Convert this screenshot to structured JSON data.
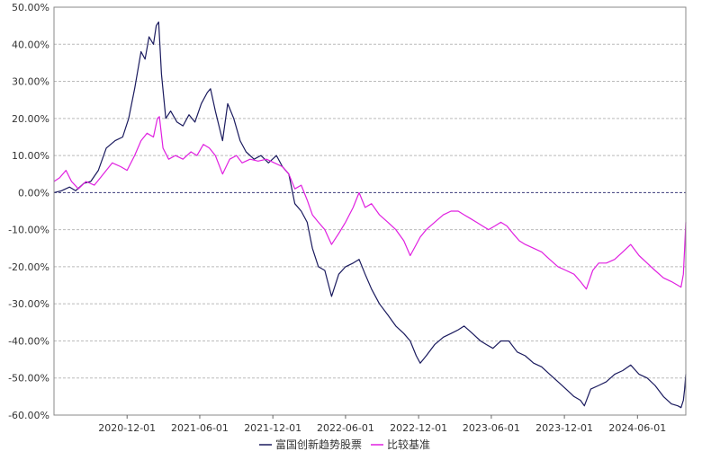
{
  "chart_data": {
    "type": "line",
    "x_axis": {
      "type": "date",
      "range": [
        "2020-06-01",
        "2024-09-30"
      ],
      "tick_labels": [
        "2020-12-01",
        "2021-06-01",
        "2021-12-01",
        "2022-06-01",
        "2022-12-01",
        "2023-06-01",
        "2023-12-01",
        "2024-06-01"
      ]
    },
    "y_axis": {
      "range": [
        -60,
        50
      ],
      "unit": "%",
      "tick_labels": [
        "50.00%",
        "40.00%",
        "30.00%",
        "20.00%",
        "10.00%",
        "0.00%",
        "-10.00%",
        "-20.00%",
        "-30.00%",
        "-40.00%",
        "-50.00%",
        "-60.00%"
      ]
    },
    "grid": true,
    "legend_position": "bottom-center",
    "series": [
      {
        "name": "富国创新趋势股票",
        "color": "#1a1a5e",
        "points": [
          [
            "2020-06-01",
            0.0
          ],
          [
            "2020-06-20",
            0.5
          ],
          [
            "2020-07-10",
            1.5
          ],
          [
            "2020-07-25",
            0.5
          ],
          [
            "2020-08-15",
            2.5
          ],
          [
            "2020-09-01",
            3.0
          ],
          [
            "2020-09-20",
            6.0
          ],
          [
            "2020-10-10",
            12.0
          ],
          [
            "2020-11-01",
            14.0
          ],
          [
            "2020-11-20",
            15.0
          ],
          [
            "2020-12-05",
            20.0
          ],
          [
            "2020-12-20",
            28.0
          ],
          [
            "2021-01-05",
            38.0
          ],
          [
            "2021-01-15",
            36.0
          ],
          [
            "2021-01-25",
            42.0
          ],
          [
            "2021-02-05",
            40.0
          ],
          [
            "2021-02-12",
            45.0
          ],
          [
            "2021-02-18",
            46.0
          ],
          [
            "2021-02-25",
            32.0
          ],
          [
            "2021-03-08",
            20.0
          ],
          [
            "2021-03-20",
            22.0
          ],
          [
            "2021-04-05",
            19.0
          ],
          [
            "2021-04-20",
            18.0
          ],
          [
            "2021-05-05",
            21.0
          ],
          [
            "2021-05-20",
            19.0
          ],
          [
            "2021-06-05",
            24.0
          ],
          [
            "2021-06-20",
            27.0
          ],
          [
            "2021-06-28",
            28.0
          ],
          [
            "2021-07-10",
            22.0
          ],
          [
            "2021-07-28",
            14.0
          ],
          [
            "2021-08-10",
            24.0
          ],
          [
            "2021-08-25",
            20.0
          ],
          [
            "2021-09-10",
            14.0
          ],
          [
            "2021-09-25",
            11.0
          ],
          [
            "2021-10-15",
            9.0
          ],
          [
            "2021-11-01",
            10.0
          ],
          [
            "2021-11-20",
            8.0
          ],
          [
            "2021-12-10",
            10.0
          ],
          [
            "2021-12-25",
            7.0
          ],
          [
            "2022-01-10",
            5.0
          ],
          [
            "2022-01-25",
            -3.0
          ],
          [
            "2022-02-10",
            -5.0
          ],
          [
            "2022-02-25",
            -8.0
          ],
          [
            "2022-03-10",
            -15.0
          ],
          [
            "2022-03-25",
            -20.0
          ],
          [
            "2022-04-10",
            -21.0
          ],
          [
            "2022-04-27",
            -28.0
          ],
          [
            "2022-05-15",
            -22.0
          ],
          [
            "2022-06-01",
            -20.0
          ],
          [
            "2022-06-20",
            -19.0
          ],
          [
            "2022-07-05",
            -18.0
          ],
          [
            "2022-07-20",
            -22.0
          ],
          [
            "2022-08-05",
            -26.0
          ],
          [
            "2022-08-25",
            -30.0
          ],
          [
            "2022-09-15",
            -33.0
          ],
          [
            "2022-10-05",
            -36.0
          ],
          [
            "2022-10-25",
            -38.0
          ],
          [
            "2022-11-10",
            -40.0
          ],
          [
            "2022-11-25",
            -44.0
          ],
          [
            "2022-12-05",
            -46.0
          ],
          [
            "2022-12-20",
            -44.0
          ],
          [
            "2023-01-10",
            -41.0
          ],
          [
            "2023-02-01",
            -39.0
          ],
          [
            "2023-02-20",
            -38.0
          ],
          [
            "2023-03-10",
            -37.0
          ],
          [
            "2023-03-25",
            -36.0
          ],
          [
            "2023-04-15",
            -38.0
          ],
          [
            "2023-05-05",
            -40.0
          ],
          [
            "2023-05-20",
            -41.0
          ],
          [
            "2023-06-05",
            -42.0
          ],
          [
            "2023-06-25",
            -40.0
          ],
          [
            "2023-07-15",
            -40.0
          ],
          [
            "2023-08-05",
            -43.0
          ],
          [
            "2023-08-25",
            -44.0
          ],
          [
            "2023-09-15",
            -46.0
          ],
          [
            "2023-10-05",
            -47.0
          ],
          [
            "2023-10-25",
            -49.0
          ],
          [
            "2023-11-15",
            -51.0
          ],
          [
            "2023-12-05",
            -53.0
          ],
          [
            "2023-12-25",
            -55.0
          ],
          [
            "2024-01-10",
            -56.0
          ],
          [
            "2024-01-20",
            -57.5
          ],
          [
            "2024-02-05",
            -53.0
          ],
          [
            "2024-02-25",
            -52.0
          ],
          [
            "2024-03-15",
            -51.0
          ],
          [
            "2024-04-05",
            -49.0
          ],
          [
            "2024-04-25",
            -48.0
          ],
          [
            "2024-05-15",
            -46.5
          ],
          [
            "2024-06-05",
            -49.0
          ],
          [
            "2024-06-25",
            -50.0
          ],
          [
            "2024-07-15",
            -52.0
          ],
          [
            "2024-08-05",
            -55.0
          ],
          [
            "2024-08-25",
            -57.0
          ],
          [
            "2024-09-10",
            -57.5
          ],
          [
            "2024-09-18",
            -58.0
          ],
          [
            "2024-09-24",
            -56.0
          ],
          [
            "2024-09-27",
            -53.0
          ],
          [
            "2024-09-30",
            -49.0
          ]
        ]
      },
      {
        "name": "比较基准",
        "color": "#e020e0",
        "points": [
          [
            "2020-06-01",
            3.0
          ],
          [
            "2020-06-15",
            4.0
          ],
          [
            "2020-07-01",
            6.0
          ],
          [
            "2020-07-15",
            3.0
          ],
          [
            "2020-08-01",
            1.0
          ],
          [
            "2020-08-20",
            3.0
          ],
          [
            "2020-09-10",
            2.0
          ],
          [
            "2020-09-25",
            4.0
          ],
          [
            "2020-10-10",
            6.0
          ],
          [
            "2020-10-25",
            8.0
          ],
          [
            "2020-11-15",
            7.0
          ],
          [
            "2020-12-01",
            6.0
          ],
          [
            "2020-12-20",
            10.0
          ],
          [
            "2021-01-05",
            14.0
          ],
          [
            "2021-01-20",
            16.0
          ],
          [
            "2021-02-05",
            15.0
          ],
          [
            "2021-02-15",
            20.0
          ],
          [
            "2021-02-20",
            20.5
          ],
          [
            "2021-03-01",
            12.0
          ],
          [
            "2021-03-15",
            9.0
          ],
          [
            "2021-04-01",
            10.0
          ],
          [
            "2021-04-20",
            9.0
          ],
          [
            "2021-05-10",
            11.0
          ],
          [
            "2021-05-25",
            10.0
          ],
          [
            "2021-06-10",
            13.0
          ],
          [
            "2021-06-25",
            12.0
          ],
          [
            "2021-07-10",
            10.0
          ],
          [
            "2021-07-28",
            5.0
          ],
          [
            "2021-08-15",
            9.0
          ],
          [
            "2021-09-01",
            10.0
          ],
          [
            "2021-09-15",
            8.0
          ],
          [
            "2021-10-05",
            9.0
          ],
          [
            "2021-10-25",
            8.5
          ],
          [
            "2021-11-15",
            9.0
          ],
          [
            "2021-12-05",
            8.0
          ],
          [
            "2021-12-25",
            7.0
          ],
          [
            "2022-01-10",
            5.0
          ],
          [
            "2022-01-25",
            1.0
          ],
          [
            "2022-02-10",
            2.0
          ],
          [
            "2022-02-25",
            -2.0
          ],
          [
            "2022-03-10",
            -6.0
          ],
          [
            "2022-03-25",
            -8.0
          ],
          [
            "2022-04-10",
            -10.0
          ],
          [
            "2022-04-27",
            -14.0
          ],
          [
            "2022-05-15",
            -11.0
          ],
          [
            "2022-06-01",
            -8.0
          ],
          [
            "2022-06-20",
            -4.0
          ],
          [
            "2022-07-05",
            0.0
          ],
          [
            "2022-07-20",
            -4.0
          ],
          [
            "2022-08-05",
            -3.0
          ],
          [
            "2022-08-25",
            -6.0
          ],
          [
            "2022-09-15",
            -8.0
          ],
          [
            "2022-10-05",
            -10.0
          ],
          [
            "2022-10-25",
            -13.0
          ],
          [
            "2022-11-10",
            -17.0
          ],
          [
            "2022-11-25",
            -14.0
          ],
          [
            "2022-12-05",
            -12.0
          ],
          [
            "2022-12-20",
            -10.0
          ],
          [
            "2023-01-10",
            -8.0
          ],
          [
            "2023-02-01",
            -6.0
          ],
          [
            "2023-02-20",
            -5.0
          ],
          [
            "2023-03-10",
            -5.0
          ],
          [
            "2023-03-25",
            -6.0
          ],
          [
            "2023-04-10",
            -7.0
          ],
          [
            "2023-04-25",
            -8.0
          ],
          [
            "2023-05-10",
            -9.0
          ],
          [
            "2023-05-25",
            -10.0
          ],
          [
            "2023-06-10",
            -9.0
          ],
          [
            "2023-06-25",
            -8.0
          ],
          [
            "2023-07-10",
            -9.0
          ],
          [
            "2023-07-25",
            -11.0
          ],
          [
            "2023-08-10",
            -13.0
          ],
          [
            "2023-08-25",
            -14.0
          ],
          [
            "2023-09-15",
            -15.0
          ],
          [
            "2023-10-05",
            -16.0
          ],
          [
            "2023-10-25",
            -18.0
          ],
          [
            "2023-11-15",
            -20.0
          ],
          [
            "2023-12-05",
            -21.0
          ],
          [
            "2023-12-25",
            -22.0
          ],
          [
            "2024-01-10",
            -24.0
          ],
          [
            "2024-01-25",
            -26.0
          ],
          [
            "2024-02-10",
            -21.0
          ],
          [
            "2024-02-25",
            -19.0
          ],
          [
            "2024-03-15",
            -19.0
          ],
          [
            "2024-04-05",
            -18.0
          ],
          [
            "2024-04-25",
            -16.0
          ],
          [
            "2024-05-15",
            -14.0
          ],
          [
            "2024-06-05",
            -17.0
          ],
          [
            "2024-06-25",
            -19.0
          ],
          [
            "2024-07-15",
            -21.0
          ],
          [
            "2024-08-05",
            -23.0
          ],
          [
            "2024-08-25",
            -24.0
          ],
          [
            "2024-09-10",
            -25.0
          ],
          [
            "2024-09-18",
            -25.5
          ],
          [
            "2024-09-24",
            -22.0
          ],
          [
            "2024-09-27",
            -15.0
          ],
          [
            "2024-09-30",
            -8.0
          ]
        ]
      }
    ]
  }
}
